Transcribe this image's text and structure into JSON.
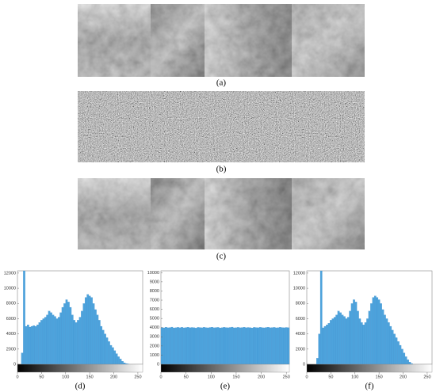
{
  "images": [
    {
      "label": "(a)"
    },
    {
      "label": "(b)"
    },
    {
      "label": "(c)"
    }
  ],
  "chart_data": [
    {
      "type": "histogram",
      "caption": "(d)",
      "color": "#4da3dc",
      "bins": [
        0,
        4,
        8,
        12,
        16,
        20,
        24,
        28,
        32,
        36,
        40,
        44,
        48,
        52,
        56,
        60,
        64,
        68,
        72,
        76,
        80,
        84,
        88,
        92,
        96,
        100,
        104,
        108,
        112,
        116,
        120,
        124,
        128,
        132,
        136,
        140,
        144,
        148,
        152,
        156,
        160,
        164,
        168,
        172,
        176,
        180,
        184,
        188,
        192,
        196,
        200,
        204,
        208,
        212,
        216,
        220,
        224,
        228,
        232,
        236,
        240,
        244,
        248,
        252,
        256
      ],
      "values": [
        0,
        0,
        1500,
        12300,
        5000,
        5200,
        4900,
        5000,
        5100,
        5000,
        5200,
        5500,
        5800,
        6000,
        6200,
        6500,
        7000,
        6800,
        6500,
        6300,
        6000,
        6200,
        6800,
        7500,
        8000,
        8500,
        8200,
        7500,
        6500,
        5800,
        5500,
        5800,
        6200,
        7000,
        8000,
        8800,
        9200,
        9000,
        8800,
        8000,
        7200,
        6500,
        5800,
        5000,
        4500,
        4000,
        3500,
        3000,
        2500,
        2200,
        1800,
        1400,
        1000,
        700,
        400,
        200,
        100,
        50,
        0,
        0,
        0,
        0,
        0,
        0
      ],
      "xlim": [
        0,
        260
      ],
      "xticks": [
        0,
        50,
        100,
        150,
        200,
        250
      ],
      "ylim": [
        0,
        12300
      ],
      "yticks": [
        0,
        2000,
        4000,
        6000,
        8000,
        10000,
        12000
      ]
    },
    {
      "type": "histogram",
      "caption": "(e)",
      "color": "#4da3dc",
      "bins": [
        0,
        4,
        8,
        12,
        16,
        20,
        24,
        28,
        32,
        36,
        40,
        44,
        48,
        52,
        56,
        60,
        64,
        68,
        72,
        76,
        80,
        84,
        88,
        92,
        96,
        100,
        104,
        108,
        112,
        116,
        120,
        124,
        128,
        132,
        136,
        140,
        144,
        148,
        152,
        156,
        160,
        164,
        168,
        172,
        176,
        180,
        184,
        188,
        192,
        196,
        200,
        204,
        208,
        212,
        216,
        220,
        224,
        228,
        232,
        236,
        240,
        244,
        248,
        252,
        256
      ],
      "values": [
        4020,
        3980,
        4050,
        3990,
        4010,
        4060,
        3970,
        4000,
        4030,
        3990,
        4040,
        3980,
        4010,
        4050,
        3990,
        4020,
        4000,
        3960,
        4030,
        4010,
        3990,
        4040,
        4000,
        3980,
        4020,
        4050,
        3990,
        4010,
        4030,
        3970,
        4000,
        4040,
        4010,
        3990,
        4020,
        4060,
        3980,
        4000,
        4030,
        3990,
        4010,
        4050,
        3990,
        4020,
        4000,
        3970,
        4030,
        4010,
        3990,
        4040,
        4000,
        3980,
        4020,
        4050,
        3990,
        4010,
        4030,
        3980,
        4000,
        4040,
        4010,
        3990,
        4020,
        4000
      ],
      "xlim": [
        0,
        256
      ],
      "xticks": [
        0,
        50,
        100,
        150,
        200,
        250
      ],
      "ylim": [
        0,
        10200
      ],
      "yticks": [
        0,
        1000,
        2000,
        3000,
        4000,
        5000,
        6000,
        7000,
        8000,
        9000,
        10000
      ]
    },
    {
      "type": "histogram",
      "caption": "(f)",
      "color": "#4da3dc",
      "bins": [
        0,
        4,
        8,
        12,
        16,
        20,
        24,
        28,
        32,
        36,
        40,
        44,
        48,
        52,
        56,
        60,
        64,
        68,
        72,
        76,
        80,
        84,
        88,
        92,
        96,
        100,
        104,
        108,
        112,
        116,
        120,
        124,
        128,
        132,
        136,
        140,
        144,
        148,
        152,
        156,
        160,
        164,
        168,
        172,
        176,
        180,
        184,
        188,
        192,
        196,
        200,
        204,
        208,
        212,
        216,
        220,
        224,
        228,
        232,
        236,
        240,
        244,
        248,
        252,
        256
      ],
      "values": [
        0,
        0,
        0,
        0,
        0,
        800,
        4000,
        12300,
        4800,
        5000,
        5200,
        5400,
        5800,
        6000,
        6200,
        6500,
        7000,
        6800,
        6500,
        6300,
        6000,
        6200,
        7000,
        8000,
        8500,
        8200,
        7000,
        6000,
        5500,
        5200,
        5500,
        6000,
        7000,
        8000,
        8800,
        9000,
        8800,
        8500,
        8000,
        7200,
        6500,
        6000,
        5500,
        5000,
        4500,
        4000,
        3500,
        3000,
        2500,
        2000,
        1500,
        1000,
        600,
        300,
        100,
        0,
        0,
        0,
        0,
        0,
        0,
        0,
        0,
        0
      ],
      "xlim": [
        0,
        260
      ],
      "xticks": [
        0,
        50,
        100,
        150,
        200,
        250
      ],
      "ylim": [
        0,
        12300
      ],
      "yticks": [
        0,
        2000,
        4000,
        6000,
        8000,
        10000,
        12000
      ]
    }
  ]
}
